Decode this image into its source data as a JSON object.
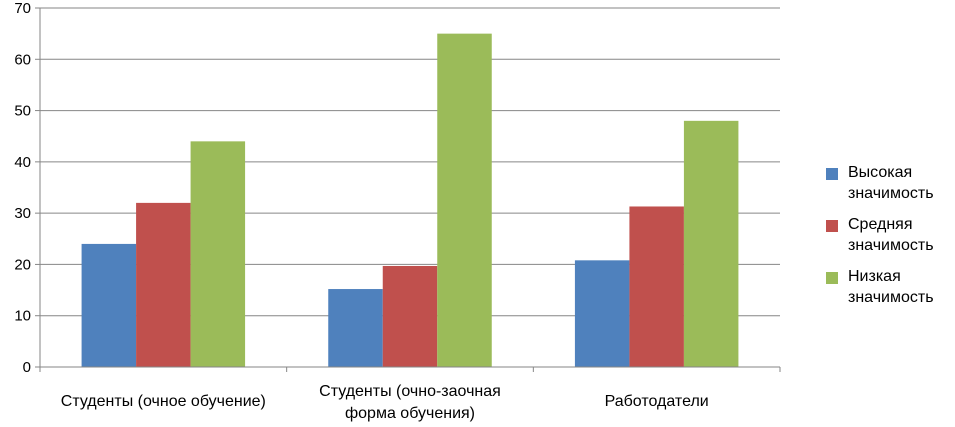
{
  "chart_data": {
    "type": "bar",
    "categories": [
      "Студенты (очное обучение)",
      "Студенты (очно-заочная форма обучения)",
      "Работодатели"
    ],
    "category_lines": [
      [
        "Студенты (очное обучение)"
      ],
      [
        "Студенты (очно-заочная",
        "форма обучения)"
      ],
      [
        "Работодатели"
      ]
    ],
    "series": [
      {
        "name": "Высокая значимость",
        "color": "#4F81BD",
        "values": [
          24,
          15.2,
          20.8
        ]
      },
      {
        "name": "Средняя значимость",
        "color": "#C0504D",
        "values": [
          32,
          19.7,
          31.3
        ]
      },
      {
        "name": "Низкая значимость",
        "color": "#9BBB59",
        "values": [
          44,
          65,
          48
        ]
      }
    ],
    "ylim": [
      0,
      70
    ],
    "yticks": [
      "0",
      "10",
      "20",
      "30",
      "40",
      "50",
      "60",
      "70"
    ],
    "grid": true,
    "legend_position": "right",
    "title": "",
    "xlabel": "",
    "ylabel": ""
  }
}
